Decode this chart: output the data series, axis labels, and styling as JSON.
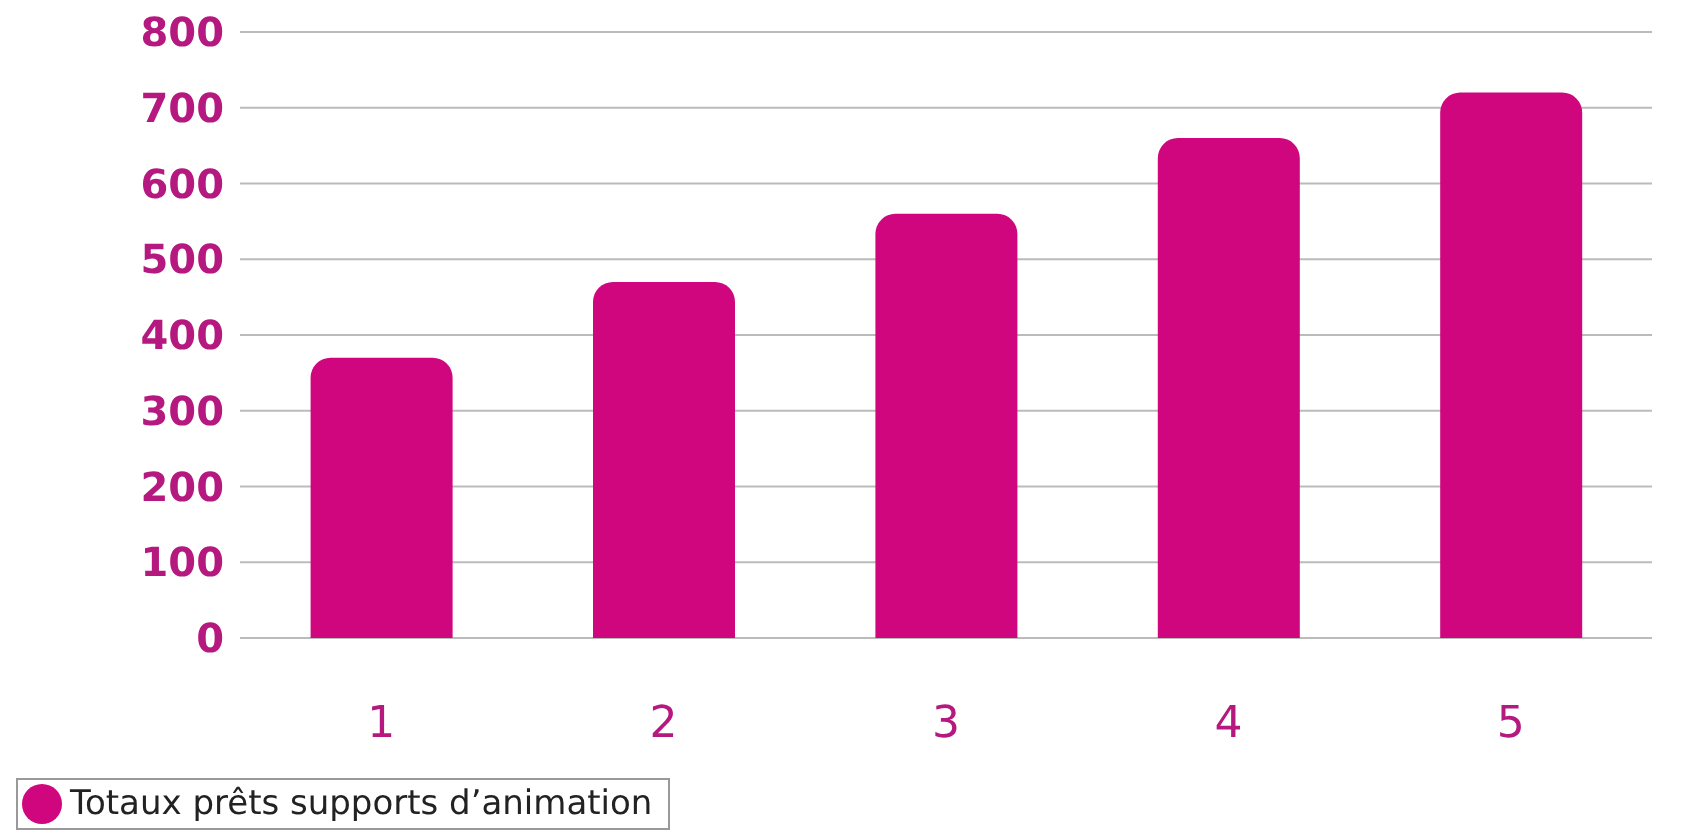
{
  "chart_data": {
    "type": "bar",
    "categories": [
      "1",
      "2",
      "3",
      "4",
      "5"
    ],
    "series": [
      {
        "name": "Totaux prêts supports d’animation",
        "color": "#d0067f",
        "values": [
          370,
          470,
          560,
          660,
          720
        ]
      }
    ],
    "ylim": [
      0,
      800
    ],
    "yticks": [
      0,
      100,
      200,
      300,
      400,
      500,
      600,
      700,
      800
    ],
    "grid": "y",
    "legend": "bottom left"
  }
}
